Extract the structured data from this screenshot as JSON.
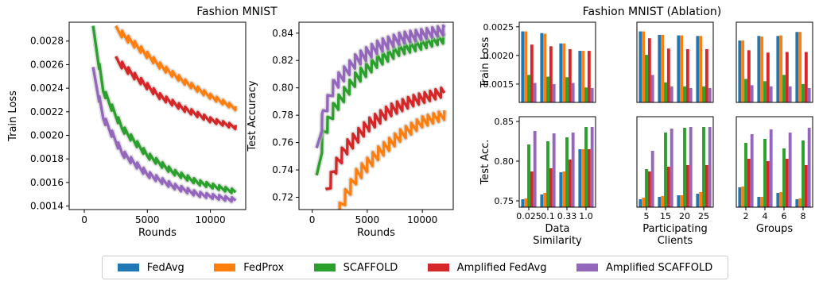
{
  "suptitle_left": "Fashion MNIST",
  "suptitle_right": "Fashion MNIST (Ablation)",
  "legend": [
    {
      "label": "FedAvg",
      "color": "#1f77b4"
    },
    {
      "label": "FedProx",
      "color": "#ff7f0e"
    },
    {
      "label": "SCAFFOLD",
      "color": "#2ca02c"
    },
    {
      "label": "Amplified FedAvg",
      "color": "#d62728"
    },
    {
      "label": "Amplified SCAFFOLD",
      "color": "#9467bd"
    }
  ],
  "chart_data": [
    {
      "type": "line",
      "xlabel": "Rounds",
      "ylabel": "Train Loss",
      "xlim": [
        -1200,
        12800
      ],
      "ylim": [
        0.00137,
        0.00296
      ],
      "xticks": [
        0,
        5000,
        10000
      ],
      "xtick_labels": [
        "0",
        "5000",
        "10000"
      ],
      "yticks": [
        0.0014,
        0.0016,
        0.0018,
        0.002,
        0.0022,
        0.0024,
        0.0026,
        0.0028
      ],
      "ytick_labels": [
        "0.0014",
        "0.0016",
        "0.0018",
        "0.0020",
        "0.0022",
        "0.0024",
        "0.0026",
        "0.0028"
      ],
      "series": [
        {
          "name": "FedProx",
          "x": [
            2500,
            4000,
            6000,
            8000,
            10000,
            12000
          ],
          "y": [
            0.0029,
            0.00277,
            0.00259,
            0.00245,
            0.00233,
            0.00223
          ]
        },
        {
          "name": "Amplified FedAvg",
          "x": [
            2500,
            4000,
            6000,
            8000,
            10000,
            12000
          ],
          "y": [
            0.00264,
            0.0025,
            0.00233,
            0.00222,
            0.00213,
            0.00207
          ]
        },
        {
          "name": "SCAFFOLD",
          "x": [
            700,
            1500,
            3000,
            5000,
            7000,
            9000,
            12000
          ],
          "y": [
            0.0029,
            0.00238,
            0.00206,
            0.00183,
            0.00169,
            0.0016,
            0.00152
          ]
        },
        {
          "name": "Amplified SCAFFOLD",
          "x": [
            700,
            1500,
            3000,
            5000,
            7000,
            9000,
            12000
          ],
          "y": [
            0.00255,
            0.00215,
            0.00185,
            0.00167,
            0.00157,
            0.0015,
            0.00145
          ]
        }
      ]
    },
    {
      "type": "line",
      "xlabel": "Rounds",
      "ylabel": "Test Accuracy",
      "xlim": [
        -1200,
        12800
      ],
      "ylim": [
        0.711,
        0.848
      ],
      "xticks": [
        0,
        5000,
        10000
      ],
      "xtick_labels": [
        "0",
        "5000",
        "10000"
      ],
      "yticks": [
        0.72,
        0.74,
        0.76,
        0.78,
        0.8,
        0.82,
        0.84
      ],
      "ytick_labels": [
        "0.72",
        "0.74",
        "0.76",
        "0.78",
        "0.80",
        "0.82",
        "0.84"
      ],
      "series": [
        {
          "name": "FedProx",
          "x": [
            2000,
            3000,
            4000,
            6000,
            8000,
            10000,
            12000
          ],
          "y": [
            0.7,
            0.72,
            0.735,
            0.752,
            0.765,
            0.775,
            0.78
          ]
        },
        {
          "name": "Amplified FedAvg",
          "x": [
            1200,
            2000,
            3000,
            5000,
            7000,
            9000,
            12000
          ],
          "y": [
            0.72,
            0.74,
            0.755,
            0.772,
            0.783,
            0.79,
            0.797
          ]
        },
        {
          "name": "SCAFFOLD",
          "x": [
            400,
            1000,
            2000,
            4000,
            6000,
            8000,
            12000
          ],
          "y": [
            0.73,
            0.765,
            0.785,
            0.807,
            0.82,
            0.828,
            0.836
          ]
        },
        {
          "name": "Amplified SCAFFOLD",
          "x": [
            400,
            1000,
            2000,
            4000,
            6000,
            8000,
            12000
          ],
          "y": [
            0.75,
            0.78,
            0.802,
            0.82,
            0.83,
            0.836,
            0.842
          ]
        }
      ]
    },
    {
      "type": "bar",
      "title": "Fashion MNIST (Ablation)",
      "series_names": [
        "FedAvg",
        "FedProx",
        "SCAFFOLD",
        "Amplified FedAvg",
        "Amplified SCAFFOLD"
      ],
      "row_ylabels": [
        "Train Loss",
        "Test Acc."
      ],
      "train_loss": {
        "ylim": [
          0.00118,
          0.00258
        ],
        "yticks": [
          0.0015,
          0.002,
          0.0025
        ],
        "ytick_labels": [
          "0.0015",
          "0.0020",
          "0.0025"
        ]
      },
      "test_acc": {
        "ylim": [
          0.742,
          0.856
        ],
        "yticks": [
          0.75,
          0.8,
          0.85
        ],
        "ytick_labels": [
          "0.75",
          "0.80",
          "0.85"
        ]
      },
      "groups": [
        {
          "xlabel": "Data\nSimilarity",
          "categories": [
            "0.025",
            "0.1",
            "0.33",
            "1.0"
          ],
          "train_loss": [
            [
              0.00242,
              0.00242,
              0.00166,
              0.00219,
              0.00152
            ],
            [
              0.00239,
              0.00238,
              0.00163,
              0.00216,
              0.0015
            ],
            [
              0.00221,
              0.00221,
              0.00162,
              0.00211,
              0.00152
            ],
            [
              0.00208,
              0.00208,
              0.00144,
              0.00208,
              0.00143
            ]
          ],
          "test_acc": [
            [
              0.752,
              0.753,
              0.821,
              0.787,
              0.838
            ],
            [
              0.758,
              0.76,
              0.825,
              0.791,
              0.835
            ],
            [
              0.786,
              0.787,
              0.83,
              0.802,
              0.836
            ],
            [
              0.815,
              0.815,
              0.843,
              0.815,
              0.843
            ]
          ]
        },
        {
          "xlabel": "Participating\nClients",
          "categories": [
            "5",
            "15",
            "20",
            "25"
          ],
          "train_loss": [
            [
              0.00242,
              0.00242,
              0.00201,
              0.0023,
              0.00166
            ],
            [
              0.00236,
              0.00236,
              0.00153,
              0.00212,
              0.00146
            ],
            [
              0.00235,
              0.00235,
              0.00146,
              0.00211,
              0.00143
            ],
            [
              0.00234,
              0.00234,
              0.00146,
              0.00211,
              0.00143
            ]
          ],
          "test_acc": [
            [
              0.752,
              0.754,
              0.79,
              0.787,
              0.813
            ],
            [
              0.755,
              0.756,
              0.836,
              0.793,
              0.841
            ],
            [
              0.757,
              0.757,
              0.842,
              0.795,
              0.843
            ],
            [
              0.759,
              0.761,
              0.843,
              0.795,
              0.843
            ]
          ]
        },
        {
          "xlabel": "Groups",
          "categories": [
            "2",
            "4",
            "6",
            "8"
          ],
          "train_loss": [
            [
              0.00226,
              0.00226,
              0.00159,
              0.00209,
              0.00148
            ],
            [
              0.00234,
              0.00233,
              0.00155,
              0.00205,
              0.00146
            ],
            [
              0.00234,
              0.00235,
              0.00166,
              0.00206,
              0.00146
            ],
            [
              0.00241,
              0.00241,
              0.0015,
              0.00206,
              0.00143
            ]
          ],
          "test_acc": [
            [
              0.767,
              0.768,
              0.823,
              0.803,
              0.834
            ],
            [
              0.755,
              0.755,
              0.828,
              0.8,
              0.84
            ],
            [
              0.76,
              0.761,
              0.816,
              0.803,
              0.836
            ],
            [
              0.752,
              0.753,
              0.826,
              0.795,
              0.842
            ]
          ]
        }
      ]
    }
  ]
}
